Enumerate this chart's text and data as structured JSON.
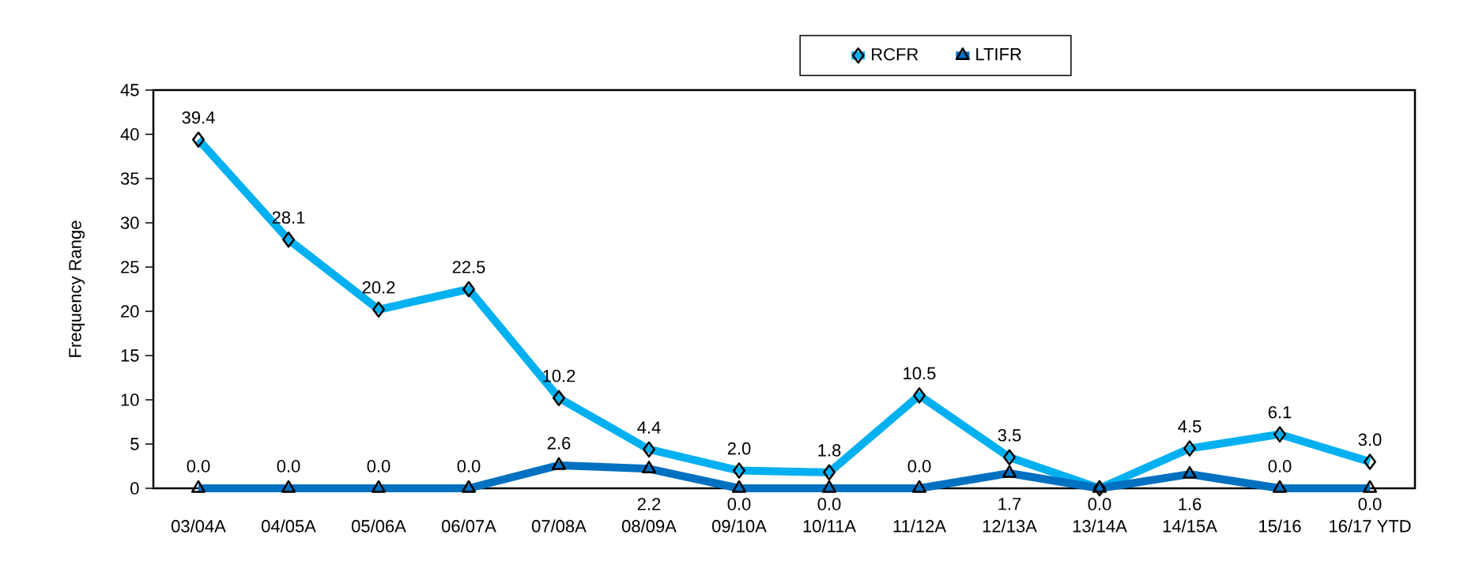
{
  "chart_data": {
    "type": "line",
    "ylabel": "Frequency Range",
    "categories": [
      "03/04A",
      "04/05A",
      "05/06A",
      "06/07A",
      "07/08A",
      "08/09A",
      "09/10A",
      "10/11A",
      "11/12A",
      "12/13A",
      "13/14A",
      "14/15A",
      "15/16",
      "16/17 YTD"
    ],
    "series": [
      {
        "name": "RCFR",
        "color": "#00b0f0",
        "marker": "diamond",
        "values": [
          39.4,
          28.1,
          20.2,
          22.5,
          10.2,
          4.4,
          2.0,
          1.8,
          10.5,
          3.5,
          0.0,
          4.5,
          6.1,
          3.0
        ],
        "value_labels": [
          "39.4",
          "28.1",
          "20.2",
          "22.5",
          "10.2",
          "4.4",
          "2.0",
          "1.8",
          "10.5",
          "3.5",
          "0.0",
          "4.5",
          "6.1",
          "3.0"
        ]
      },
      {
        "name": "LTIFR",
        "color": "#0070c0",
        "marker": "triangle",
        "values": [
          0.0,
          0.0,
          0.0,
          0.0,
          2.6,
          2.2,
          0.0,
          0.0,
          0.0,
          1.7,
          0.0,
          1.6,
          0.0,
          0.0
        ],
        "value_labels": [
          "0.0",
          "0.0",
          "0.0",
          "0.0",
          "2.6",
          "2.2",
          "0.0",
          "0.0",
          "0.0",
          "1.7",
          null,
          "1.6",
          "0.0",
          "0.0"
        ]
      }
    ],
    "ylim": [
      0,
      45
    ],
    "yticks": [
      0,
      5,
      10,
      15,
      20,
      25,
      30,
      35,
      40,
      45
    ],
    "legend": "top",
    "line_style": "solid"
  }
}
